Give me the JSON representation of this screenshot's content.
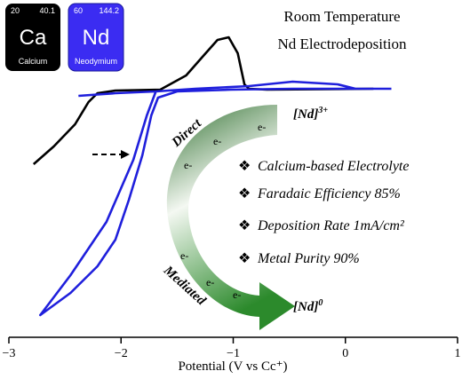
{
  "chart_data": {
    "type": "line",
    "title": "Room Temperature",
    "subtitle": "Nd Electrodeposition",
    "xlabel": "Potential (V vs Cc⁺)",
    "xlim": [
      -3.0,
      1.0
    ],
    "xticks": [
      {
        "value": -3,
        "label": "−3"
      },
      {
        "value": -2,
        "label": "−2"
      },
      {
        "value": -1,
        "label": "−1"
      },
      0,
      1
    ],
    "ylim": [
      -28,
      10
    ],
    "series": [
      {
        "color": "#000000",
        "x": [
          -2.78,
          -2.6,
          -2.41,
          -2.29,
          -2.21,
          -2.05,
          -1.65,
          -1.42,
          -1.26,
          -1.14,
          -1.04,
          -0.96,
          -0.9,
          -0.86,
          -0.7,
          0.25
        ],
        "values": [
          -8.5,
          -6.5,
          -4,
          -1.5,
          -0.5,
          -0.2,
          -0.1,
          1.5,
          3.8,
          5.5,
          5.8,
          4,
          0.5,
          0,
          -0.1,
          0
        ]
      },
      {
        "color": "#1f1fdc",
        "x": [
          -2.38,
          -2.05,
          -1.69,
          -1.34,
          -0.86,
          -0.47,
          -0.07,
          0.09,
          0.41,
          null,
          -1.69,
          -1.77,
          -1.89,
          -2.13,
          -2.45,
          -2.72,
          -2.45,
          -2.21,
          -2.05,
          -1.93,
          -1.81,
          -1.73,
          -1.67,
          -1.5,
          -1.02,
          -0.47,
          0.41
        ],
        "values": [
          -0.8,
          -0.5,
          -0.3,
          0,
          0.3,
          0.8,
          0.5,
          0,
          0,
          null,
          -0.3,
          -3,
          -8,
          -15,
          -21,
          -25.5,
          -23,
          -20,
          -17,
          -12.5,
          -7.5,
          -3,
          -1,
          -0.3,
          -0.1,
          0,
          0
        ]
      }
    ]
  },
  "elements": [
    {
      "number": "20",
      "mass": "40.1",
      "symbol": "Ca",
      "name": "Calcium"
    },
    {
      "number": "60",
      "mass": "144.2",
      "symbol": "Nd",
      "name": "Neodymium"
    }
  ],
  "scheme": {
    "direct": "Direct",
    "mediated": "Mediated",
    "electrons": [
      "e-",
      "e-",
      "e-",
      "e-",
      "e-",
      "e-"
    ],
    "ion": "[Nd]",
    "oxidized_charge": "3+",
    "reduced_charge": "0"
  },
  "bullet": "❖",
  "highlights": [
    "Calcium-based Electrolyte",
    "Faradaic Efficiency 85%",
    "Deposition Rate 1mA/cm²",
    "Metal Purity 90%"
  ]
}
